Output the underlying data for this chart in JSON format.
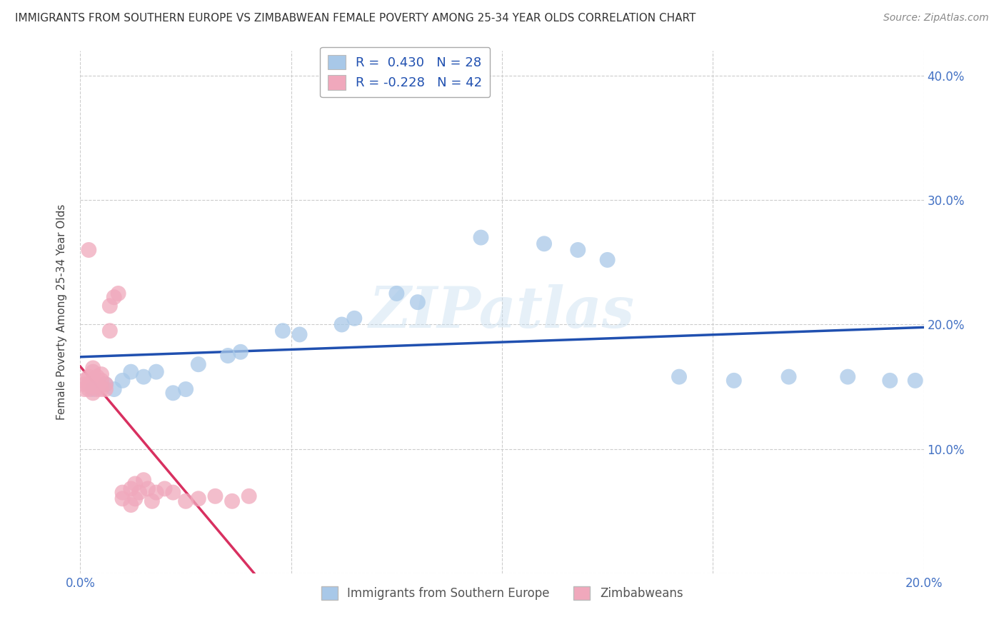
{
  "title": "IMMIGRANTS FROM SOUTHERN EUROPE VS ZIMBABWEAN FEMALE POVERTY AMONG 25-34 YEAR OLDS CORRELATION CHART",
  "source": "Source: ZipAtlas.com",
  "ylabel": "Female Poverty Among 25-34 Year Olds",
  "xlim": [
    0.0,
    0.2
  ],
  "ylim": [
    0.0,
    0.42
  ],
  "xticks": [
    0.0,
    0.05,
    0.1,
    0.15,
    0.2
  ],
  "yticks": [
    0.0,
    0.1,
    0.2,
    0.3,
    0.4
  ],
  "xticklabels": [
    "0.0%",
    "",
    "",
    "",
    "20.0%"
  ],
  "yticklabels_right": [
    "",
    "10.0%",
    "20.0%",
    "30.0%",
    "40.0%"
  ],
  "legend1_label": "R =  0.430   N = 28",
  "legend2_label": "R = -0.228   N = 42",
  "blue_color": "#a8c8e8",
  "pink_color": "#f0a8bc",
  "line_blue": "#2050b0",
  "line_pink": "#d83060",
  "watermark": "ZIPatlas",
  "blue_points": [
    [
      0.003,
      0.148
    ],
    [
      0.006,
      0.152
    ],
    [
      0.008,
      0.148
    ],
    [
      0.01,
      0.155
    ],
    [
      0.012,
      0.162
    ],
    [
      0.015,
      0.158
    ],
    [
      0.018,
      0.162
    ],
    [
      0.022,
      0.145
    ],
    [
      0.025,
      0.148
    ],
    [
      0.028,
      0.168
    ],
    [
      0.035,
      0.175
    ],
    [
      0.038,
      0.178
    ],
    [
      0.048,
      0.195
    ],
    [
      0.052,
      0.192
    ],
    [
      0.062,
      0.2
    ],
    [
      0.065,
      0.205
    ],
    [
      0.075,
      0.225
    ],
    [
      0.08,
      0.218
    ],
    [
      0.095,
      0.27
    ],
    [
      0.11,
      0.265
    ],
    [
      0.118,
      0.26
    ],
    [
      0.125,
      0.252
    ],
    [
      0.142,
      0.158
    ],
    [
      0.155,
      0.155
    ],
    [
      0.168,
      0.158
    ],
    [
      0.182,
      0.158
    ],
    [
      0.192,
      0.155
    ],
    [
      0.198,
      0.155
    ]
  ],
  "pink_points": [
    [
      0.001,
      0.148
    ],
    [
      0.001,
      0.152
    ],
    [
      0.001,
      0.155
    ],
    [
      0.002,
      0.148
    ],
    [
      0.002,
      0.152
    ],
    [
      0.002,
      0.158
    ],
    [
      0.003,
      0.145
    ],
    [
      0.003,
      0.15
    ],
    [
      0.003,
      0.155
    ],
    [
      0.003,
      0.162
    ],
    [
      0.003,
      0.165
    ],
    [
      0.004,
      0.148
    ],
    [
      0.004,
      0.152
    ],
    [
      0.004,
      0.158
    ],
    [
      0.005,
      0.148
    ],
    [
      0.005,
      0.155
    ],
    [
      0.005,
      0.16
    ],
    [
      0.006,
      0.148
    ],
    [
      0.006,
      0.152
    ],
    [
      0.007,
      0.195
    ],
    [
      0.007,
      0.215
    ],
    [
      0.008,
      0.222
    ],
    [
      0.009,
      0.225
    ],
    [
      0.002,
      0.26
    ],
    [
      0.01,
      0.065
    ],
    [
      0.01,
      0.06
    ],
    [
      0.012,
      0.068
    ],
    [
      0.012,
      0.055
    ],
    [
      0.013,
      0.072
    ],
    [
      0.013,
      0.06
    ],
    [
      0.014,
      0.065
    ],
    [
      0.015,
      0.075
    ],
    [
      0.016,
      0.068
    ],
    [
      0.017,
      0.058
    ],
    [
      0.018,
      0.065
    ],
    [
      0.02,
      0.068
    ],
    [
      0.022,
      0.065
    ],
    [
      0.025,
      0.058
    ],
    [
      0.028,
      0.06
    ],
    [
      0.032,
      0.062
    ],
    [
      0.036,
      0.058
    ],
    [
      0.04,
      0.062
    ]
  ]
}
